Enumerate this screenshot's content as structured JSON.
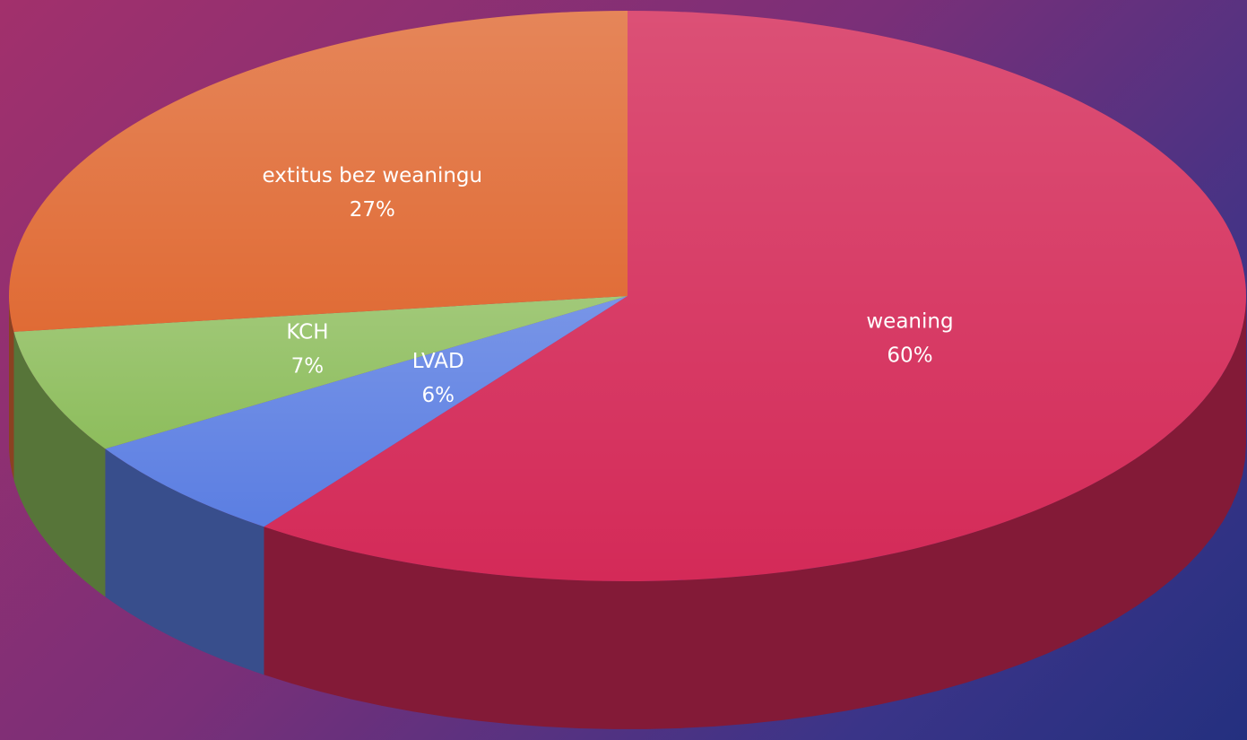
{
  "chart_data": {
    "type": "pie",
    "three_d": true,
    "categories": [
      "weaning",
      "LVAD",
      "KCH",
      "extitus bez weaningu"
    ],
    "values": [
      60,
      6,
      7,
      27
    ],
    "value_labels": [
      "60%",
      "6%",
      "7%",
      "27%"
    ],
    "colors": [
      "#d42a58",
      "#5b7ee2",
      "#8dbd5c",
      "#e06b35"
    ]
  }
}
